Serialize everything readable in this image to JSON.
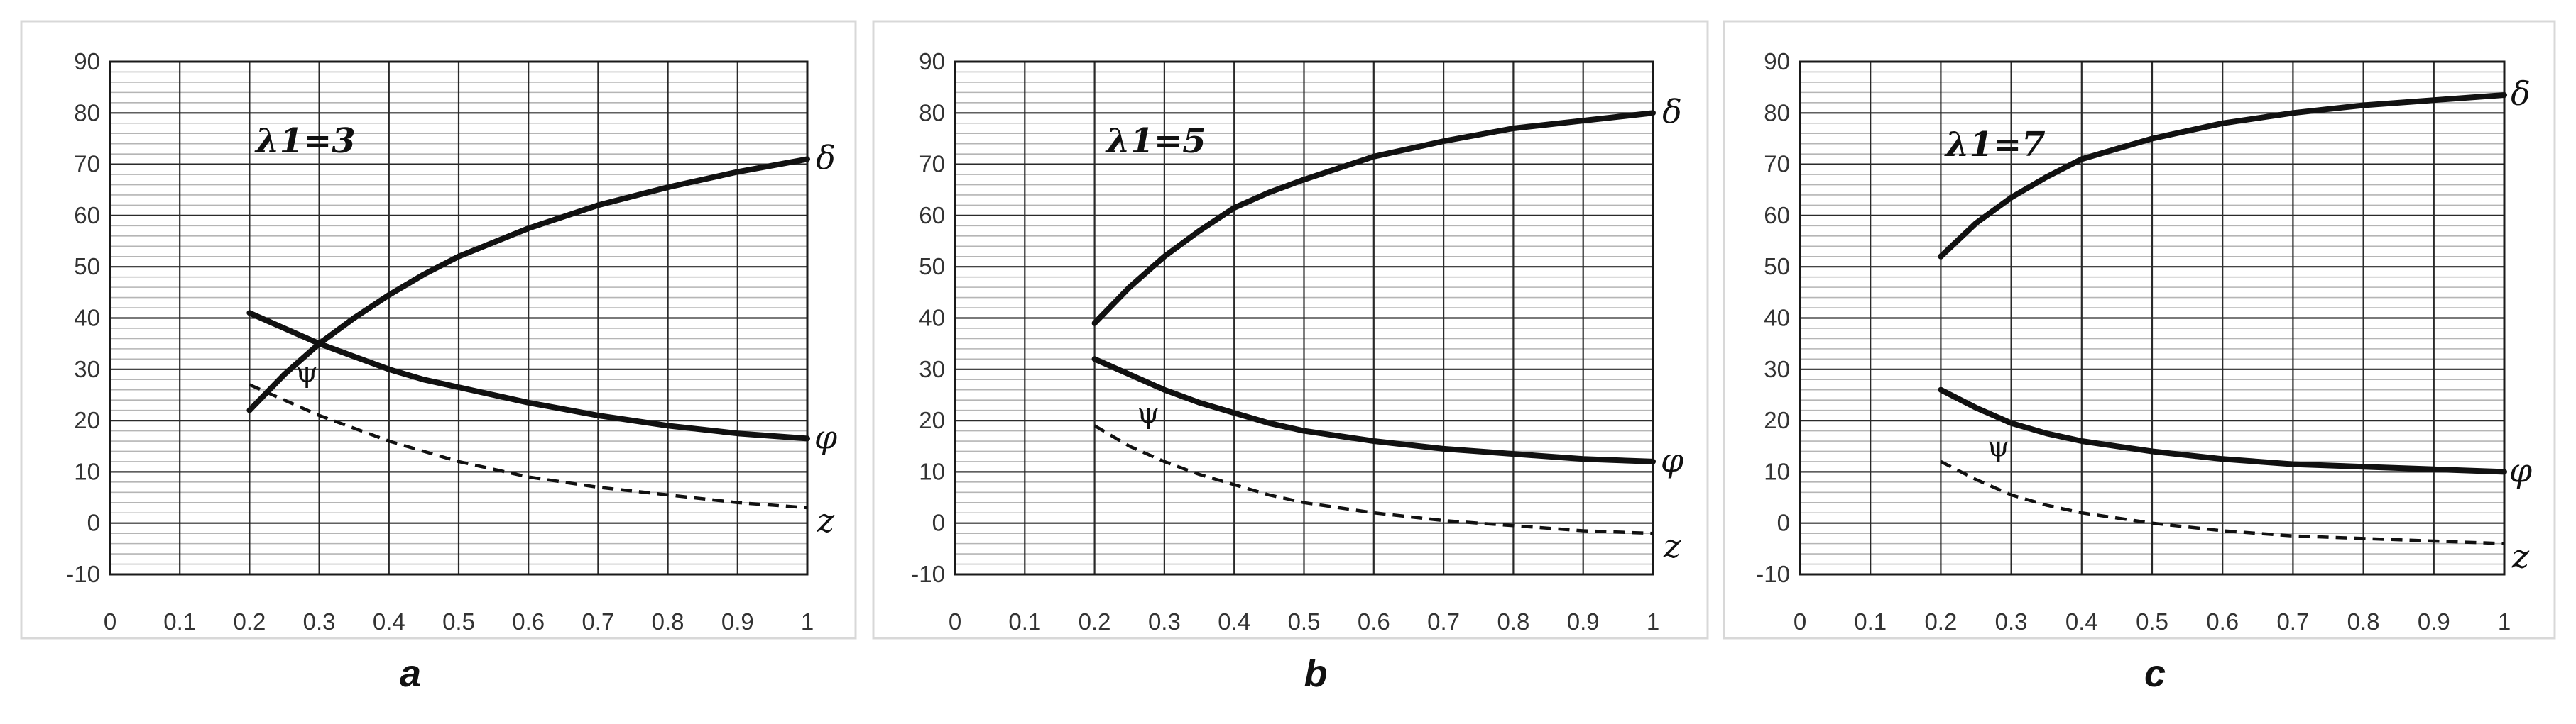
{
  "chart_data": [
    {
      "type": "line",
      "panel_label": "a",
      "annotation": "λ1=3",
      "xlim": [
        0,
        1
      ],
      "ylim": [
        -10,
        90
      ],
      "x_ticks": [
        "0",
        "0.1",
        "0.2",
        "0.3",
        "0.4",
        "0.5",
        "0.6",
        "0.7",
        "0.8",
        "0.9",
        "1"
      ],
      "y_ticks": [
        "-10",
        "0",
        "10",
        "20",
        "30",
        "40",
        "50",
        "60",
        "70",
        "80",
        "90"
      ],
      "grid": true,
      "series": [
        {
          "name": "δ",
          "style": "solid",
          "x": [
            0.2,
            0.25,
            0.3,
            0.35,
            0.4,
            0.45,
            0.5,
            0.6,
            0.7,
            0.8,
            0.9,
            1.0
          ],
          "values": [
            22,
            29,
            35,
            40,
            44.5,
            48.5,
            52,
            57.5,
            62,
            65.5,
            68.5,
            71
          ]
        },
        {
          "name": "φ",
          "style": "solid",
          "x": [
            0.2,
            0.25,
            0.3,
            0.35,
            0.4,
            0.45,
            0.5,
            0.6,
            0.7,
            0.8,
            0.9,
            1.0
          ],
          "values": [
            41,
            38,
            35,
            32.5,
            30,
            28,
            26.5,
            23.5,
            21,
            19,
            17.5,
            16.5
          ]
        },
        {
          "name": "z",
          "style": "dashed",
          "x": [
            0.2,
            0.25,
            0.3,
            0.35,
            0.4,
            0.45,
            0.5,
            0.6,
            0.7,
            0.8,
            0.9,
            1.0
          ],
          "values": [
            27,
            24,
            21,
            18.5,
            16,
            14,
            12,
            9,
            7,
            5.5,
            4,
            3
          ]
        }
      ],
      "psi_label": "ψ",
      "psi_pos": [
        0.26,
        27
      ]
    },
    {
      "type": "line",
      "panel_label": "b",
      "annotation": "λ1=5",
      "xlim": [
        0,
        1
      ],
      "ylim": [
        -10,
        90
      ],
      "x_ticks": [
        "0",
        "0.1",
        "0.2",
        "0.3",
        "0.4",
        "0.5",
        "0.6",
        "0.7",
        "0.8",
        "0.9",
        "1"
      ],
      "y_ticks": [
        "-10",
        "0",
        "10",
        "20",
        "30",
        "40",
        "50",
        "60",
        "70",
        "80",
        "90"
      ],
      "grid": true,
      "series": [
        {
          "name": "δ",
          "style": "solid",
          "x": [
            0.2,
            0.25,
            0.3,
            0.35,
            0.4,
            0.45,
            0.5,
            0.6,
            0.7,
            0.8,
            0.9,
            1.0
          ],
          "values": [
            39,
            46,
            52,
            57,
            61.5,
            64.5,
            67,
            71.5,
            74.5,
            77,
            78.5,
            80
          ]
        },
        {
          "name": "φ",
          "style": "solid",
          "x": [
            0.2,
            0.25,
            0.3,
            0.35,
            0.4,
            0.45,
            0.5,
            0.6,
            0.7,
            0.8,
            0.9,
            1.0
          ],
          "values": [
            32,
            29,
            26,
            23.5,
            21.5,
            19.5,
            18,
            16,
            14.5,
            13.5,
            12.5,
            12
          ]
        },
        {
          "name": "z",
          "style": "dashed",
          "x": [
            0.2,
            0.25,
            0.3,
            0.35,
            0.4,
            0.45,
            0.5,
            0.6,
            0.7,
            0.8,
            0.9,
            1.0
          ],
          "values": [
            19,
            15,
            12,
            9.5,
            7.5,
            5.5,
            4,
            2,
            0.5,
            -0.5,
            -1.5,
            -2
          ]
        }
      ],
      "psi_label": "ψ",
      "psi_pos": [
        0.255,
        19
      ]
    },
    {
      "type": "line",
      "panel_label": "c",
      "annotation": "λ1=7",
      "xlim": [
        0,
        1
      ],
      "ylim": [
        -10,
        90
      ],
      "x_ticks": [
        "0",
        "0.1",
        "0.2",
        "0.3",
        "0.4",
        "0.5",
        "0.6",
        "0.7",
        "0.8",
        "0.9",
        "1"
      ],
      "y_ticks": [
        "-10",
        "0",
        "10",
        "20",
        "30",
        "40",
        "50",
        "60",
        "70",
        "80",
        "90"
      ],
      "grid": true,
      "series": [
        {
          "name": "δ",
          "style": "solid",
          "x": [
            0.2,
            0.25,
            0.3,
            0.35,
            0.4,
            0.45,
            0.5,
            0.6,
            0.7,
            0.8,
            0.9,
            1.0
          ],
          "values": [
            52,
            58.5,
            63.5,
            67.5,
            71,
            73,
            75,
            78,
            80,
            81.5,
            82.5,
            83.5
          ]
        },
        {
          "name": "φ",
          "style": "solid",
          "x": [
            0.2,
            0.25,
            0.3,
            0.35,
            0.4,
            0.45,
            0.5,
            0.6,
            0.7,
            0.8,
            0.9,
            1.0
          ],
          "values": [
            26,
            22.5,
            19.5,
            17.5,
            16,
            15,
            14,
            12.5,
            11.5,
            11,
            10.5,
            10
          ]
        },
        {
          "name": "z",
          "style": "dashed",
          "x": [
            0.2,
            0.25,
            0.3,
            0.35,
            0.4,
            0.45,
            0.5,
            0.6,
            0.7,
            0.8,
            0.9,
            1.0
          ],
          "values": [
            12,
            8.5,
            5.5,
            3.5,
            2,
            1,
            0,
            -1.5,
            -2.5,
            -3,
            -3.5,
            -4
          ]
        }
      ],
      "psi_label": "ψ",
      "psi_pos": [
        0.26,
        12.5
      ]
    }
  ]
}
